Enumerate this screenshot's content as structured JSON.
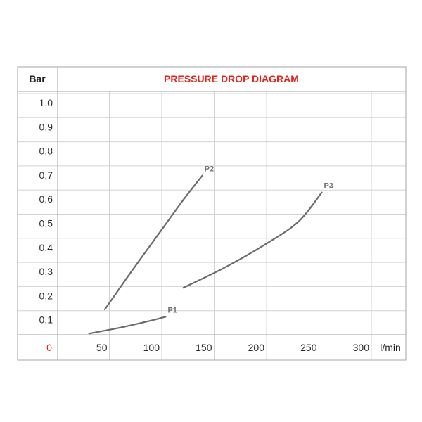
{
  "chart_data": {
    "type": "line",
    "title": "PRESSURE DROP DIAGRAM",
    "ylabel": "Bar",
    "xlabel": "l/min",
    "x_ticks": [
      "50",
      "100",
      "150",
      "200",
      "250",
      "300"
    ],
    "y_ticks": [
      "0,1",
      "0,2",
      "0,3",
      "0,4",
      "0,5",
      "0,6",
      "0,7",
      "0,8",
      "0,9",
      "1,0"
    ],
    "origin_label": "0",
    "xlim": [
      0,
      335
    ],
    "ylim": [
      0,
      1.0
    ],
    "grid": true,
    "series": [
      {
        "name": "P1",
        "points": [
          [
            30,
            0.005
          ],
          [
            60,
            0.03
          ],
          [
            90,
            0.06
          ],
          [
            103,
            0.075
          ]
        ]
      },
      {
        "name": "P2",
        "points": [
          [
            45,
            0.105
          ],
          [
            70,
            0.26
          ],
          [
            100,
            0.44
          ],
          [
            120,
            0.56
          ],
          [
            138,
            0.66
          ]
        ]
      },
      {
        "name": "P3",
        "points": [
          [
            120,
            0.195
          ],
          [
            160,
            0.28
          ],
          [
            200,
            0.38
          ],
          [
            230,
            0.47
          ],
          [
            252,
            0.59
          ]
        ]
      }
    ],
    "colors": {
      "title": "#e2231a",
      "origin": "#e2231a",
      "grid": "#d3d3d3",
      "border": "#b5b5b5",
      "line": "#6b6b6b"
    }
  }
}
